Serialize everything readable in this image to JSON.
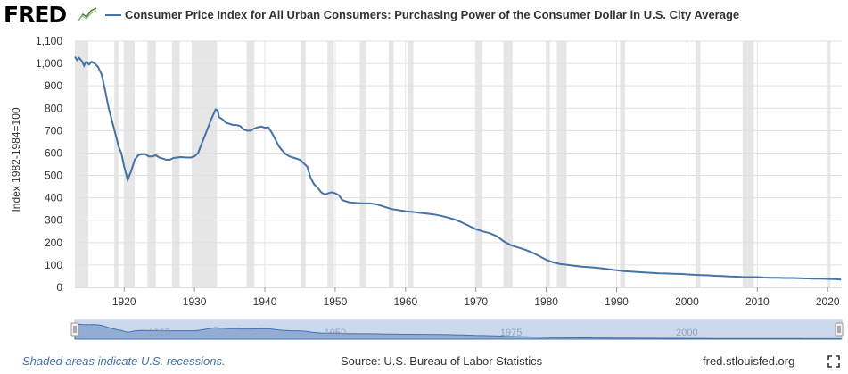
{
  "header": {
    "logo": "FRED",
    "logo_icon": "line-chart-icon",
    "legend_label": "Consumer Price Index for All Urban Consumers: Purchasing Power of the Consumer Dollar in U.S. City Average"
  },
  "chart_data": {
    "type": "line",
    "title": "",
    "xlabel": "",
    "ylabel": "Index 1982-1984=100",
    "xlim": [
      1913,
      2022
    ],
    "ylim": [
      0,
      1100
    ],
    "x_ticks": [
      "1920",
      "1930",
      "1940",
      "1950",
      "1960",
      "1970",
      "1980",
      "1990",
      "2000",
      "2010",
      "2020"
    ],
    "y_ticks": [
      "0",
      "100",
      "200",
      "300",
      "400",
      "500",
      "600",
      "700",
      "800",
      "900",
      "1,000",
      "1,100"
    ],
    "grid": true,
    "legend_position": "top",
    "series_color": "#4572a7",
    "recession_color": "#e6e6e6",
    "recessions": [
      [
        1913.0,
        1914.9
      ],
      [
        1918.6,
        1919.2
      ],
      [
        1920.0,
        1921.5
      ],
      [
        1923.3,
        1924.5
      ],
      [
        1926.8,
        1927.9
      ],
      [
        1929.6,
        1933.2
      ],
      [
        1937.4,
        1938.5
      ],
      [
        1945.1,
        1945.8
      ],
      [
        1948.9,
        1949.8
      ],
      [
        1953.5,
        1954.4
      ],
      [
        1957.6,
        1958.3
      ],
      [
        1960.3,
        1961.1
      ],
      [
        1969.9,
        1970.9
      ],
      [
        1973.9,
        1975.2
      ],
      [
        1980.0,
        1980.5
      ],
      [
        1981.5,
        1982.9
      ],
      [
        1990.5,
        1991.2
      ],
      [
        2001.2,
        2001.9
      ],
      [
        2007.9,
        2009.5
      ],
      [
        2020.1,
        2020.4
      ]
    ],
    "series": [
      {
        "values": [
          [
            1913.0,
            1030
          ],
          [
            1913.3,
            1015
          ],
          [
            1913.6,
            1025
          ],
          [
            1914.0,
            1010
          ],
          [
            1914.3,
            990
          ],
          [
            1914.6,
            1008
          ],
          [
            1915.0,
            995
          ],
          [
            1915.4,
            1008
          ],
          [
            1915.8,
            1000
          ],
          [
            1916.3,
            985
          ],
          [
            1916.8,
            950
          ],
          [
            1917.3,
            880
          ],
          [
            1917.8,
            800
          ],
          [
            1918.3,
            740
          ],
          [
            1918.8,
            680
          ],
          [
            1919.2,
            630
          ],
          [
            1919.6,
            600
          ],
          [
            1920.0,
            540
          ],
          [
            1920.5,
            480
          ],
          [
            1921.0,
            520
          ],
          [
            1921.5,
            570
          ],
          [
            1922.0,
            590
          ],
          [
            1922.5,
            595
          ],
          [
            1923.0,
            595
          ],
          [
            1923.5,
            585
          ],
          [
            1924.0,
            585
          ],
          [
            1924.5,
            590
          ],
          [
            1925.0,
            580
          ],
          [
            1925.5,
            575
          ],
          [
            1926.0,
            570
          ],
          [
            1926.5,
            570
          ],
          [
            1927.0,
            578
          ],
          [
            1928.0,
            582
          ],
          [
            1929.0,
            580
          ],
          [
            1929.5,
            580
          ],
          [
            1930.0,
            585
          ],
          [
            1930.5,
            600
          ],
          [
            1931.0,
            640
          ],
          [
            1931.5,
            680
          ],
          [
            1932.0,
            720
          ],
          [
            1932.5,
            760
          ],
          [
            1933.0,
            795
          ],
          [
            1933.3,
            790
          ],
          [
            1933.5,
            760
          ],
          [
            1934.0,
            750
          ],
          [
            1934.5,
            735
          ],
          [
            1935.0,
            730
          ],
          [
            1935.5,
            725
          ],
          [
            1936.0,
            725
          ],
          [
            1936.5,
            720
          ],
          [
            1937.0,
            705
          ],
          [
            1937.5,
            700
          ],
          [
            1938.0,
            700
          ],
          [
            1938.5,
            710
          ],
          [
            1939.0,
            715
          ],
          [
            1939.5,
            718
          ],
          [
            1940.0,
            713
          ],
          [
            1940.5,
            715
          ],
          [
            1941.0,
            690
          ],
          [
            1941.5,
            660
          ],
          [
            1942.0,
            630
          ],
          [
            1942.5,
            610
          ],
          [
            1943.0,
            595
          ],
          [
            1943.5,
            585
          ],
          [
            1944.0,
            580
          ],
          [
            1945.0,
            570
          ],
          [
            1946.0,
            540
          ],
          [
            1946.5,
            490
          ],
          [
            1947.0,
            460
          ],
          [
            1947.5,
            445
          ],
          [
            1948.0,
            425
          ],
          [
            1948.5,
            415
          ],
          [
            1949.0,
            420
          ],
          [
            1949.5,
            425
          ],
          [
            1950.0,
            420
          ],
          [
            1950.5,
            412
          ],
          [
            1951.0,
            390
          ],
          [
            1951.5,
            385
          ],
          [
            1952.0,
            380
          ],
          [
            1953.0,
            377
          ],
          [
            1954.0,
            375
          ],
          [
            1955.0,
            375
          ],
          [
            1956.0,
            370
          ],
          [
            1957.0,
            360
          ],
          [
            1958.0,
            350
          ],
          [
            1959.0,
            345
          ],
          [
            1960.0,
            340
          ],
          [
            1961.0,
            337
          ],
          [
            1962.0,
            333
          ],
          [
            1963.0,
            330
          ],
          [
            1964.0,
            326
          ],
          [
            1965.0,
            320
          ],
          [
            1966.0,
            312
          ],
          [
            1967.0,
            303
          ],
          [
            1968.0,
            290
          ],
          [
            1969.0,
            275
          ],
          [
            1970.0,
            260
          ],
          [
            1971.0,
            250
          ],
          [
            1972.0,
            242
          ],
          [
            1973.0,
            228
          ],
          [
            1974.0,
            205
          ],
          [
            1975.0,
            188
          ],
          [
            1976.0,
            178
          ],
          [
            1977.0,
            168
          ],
          [
            1978.0,
            156
          ],
          [
            1979.0,
            140
          ],
          [
            1980.0,
            123
          ],
          [
            1981.0,
            111
          ],
          [
            1982.0,
            104
          ],
          [
            1983.0,
            101
          ],
          [
            1984.0,
            97
          ],
          [
            1985.0,
            93
          ],
          [
            1986.0,
            91
          ],
          [
            1987.0,
            88
          ],
          [
            1988.0,
            85
          ],
          [
            1989.0,
            81
          ],
          [
            1990.0,
            77
          ],
          [
            1991.0,
            73
          ],
          [
            1992.0,
            71
          ],
          [
            1993.0,
            69
          ],
          [
            1994.0,
            67
          ],
          [
            1995.0,
            65
          ],
          [
            1996.0,
            63
          ],
          [
            1997.0,
            62
          ],
          [
            1998.0,
            61
          ],
          [
            1999.0,
            60
          ],
          [
            2000.0,
            58
          ],
          [
            2001.0,
            56
          ],
          [
            2002.0,
            55
          ],
          [
            2003.0,
            54
          ],
          [
            2004.0,
            52
          ],
          [
            2005.0,
            51
          ],
          [
            2006.0,
            49
          ],
          [
            2007.0,
            48
          ],
          [
            2008.0,
            46
          ],
          [
            2009.0,
            46
          ],
          [
            2010.0,
            46
          ],
          [
            2011.0,
            44
          ],
          [
            2012.0,
            43
          ],
          [
            2013.0,
            43
          ],
          [
            2014.0,
            42
          ],
          [
            2015.0,
            42
          ],
          [
            2016.0,
            41
          ],
          [
            2017.0,
            40
          ],
          [
            2018.0,
            39
          ],
          [
            2019.0,
            39
          ],
          [
            2020.0,
            38
          ],
          [
            2021.0,
            37
          ],
          [
            2021.9,
            35
          ]
        ]
      }
    ],
    "navigator_labels": [
      "1925",
      "1950",
      "1975",
      "2000"
    ]
  },
  "footer": {
    "note": "Shaded areas indicate U.S. recessions.",
    "source": "Source: U.S. Bureau of Labor Statistics",
    "url": "fred.stlouisfed.org",
    "fullscreen_icon": "fullscreen-icon"
  }
}
